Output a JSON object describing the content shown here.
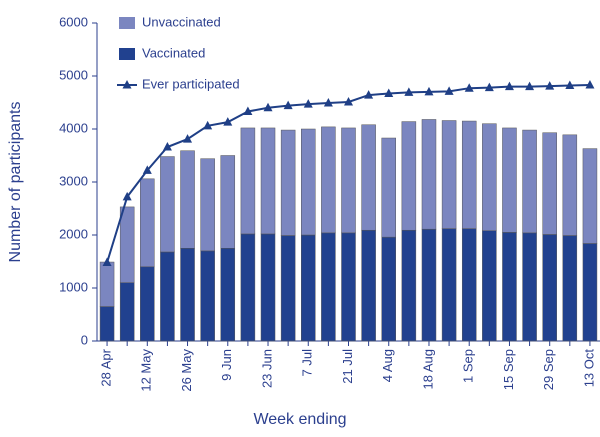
{
  "chart_data": {
    "type": "bar",
    "stacked": true,
    "xlabel": "Week ending",
    "ylabel": "Number of participants",
    "categories": [
      "28 Apr",
      null,
      "12 May",
      null,
      "26 May",
      null,
      "9 Jun",
      null,
      "23 Jun",
      null,
      "7 Jul",
      null,
      "21 Jul",
      null,
      "4 Aug",
      null,
      "18 Aug",
      null,
      "1 Sep",
      null,
      "15 Sep",
      null,
      "29 Sep",
      null,
      "13 Oct"
    ],
    "series": [
      {
        "name": "Vaccinated",
        "color": "#21418f",
        "values": [
          650,
          1100,
          1400,
          1680,
          1750,
          1700,
          1750,
          2020,
          2020,
          1990,
          2000,
          2040,
          2040,
          2090,
          1960,
          2090,
          2110,
          2120,
          2120,
          2080,
          2050,
          2040,
          2010,
          1990,
          1840
        ]
      },
      {
        "name": "Unvaccinated",
        "color": "#7b86c0",
        "values": [
          840,
          1430,
          1660,
          1800,
          1840,
          1740,
          1750,
          2000,
          2000,
          1990,
          2000,
          2000,
          1980,
          1990,
          1870,
          2050,
          2070,
          2040,
          2030,
          2020,
          1970,
          1940,
          1920,
          1900,
          1790
        ]
      },
      {
        "name": "Ever participated",
        "color": "#1f3f86",
        "type": "line",
        "values": [
          1480,
          2720,
          3220,
          3660,
          3810,
          4060,
          4130,
          4330,
          4400,
          4440,
          4470,
          4490,
          4510,
          4640,
          4670,
          4690,
          4700,
          4710,
          4770,
          4780,
          4800,
          4800,
          4810,
          4820,
          4830
        ]
      }
    ],
    "ylim": [
      0,
      6000
    ],
    "yticks": [
      0,
      1000,
      2000,
      3000,
      4000,
      5000,
      6000
    ],
    "grid": false
  }
}
